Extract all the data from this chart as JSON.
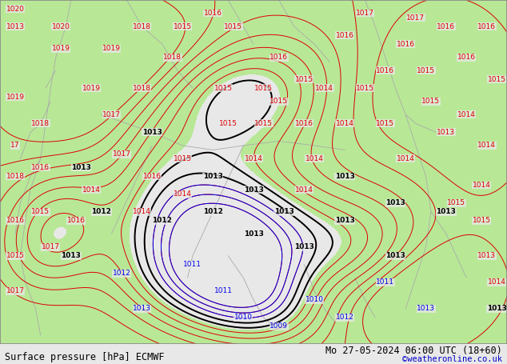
{
  "title_left": "Surface pressure [hPa] ECMWF",
  "title_right": "Mo 27-05-2024 06:00 UTC (18+60)",
  "credit": "©weatheronline.co.uk",
  "bg_color": "#e8e8e8",
  "green_color": "#b8e896",
  "border_color": "#888888",
  "contour_red_color": "#dd0000",
  "contour_black_color": "#000000",
  "contour_blue_color": "#0000ee",
  "gray_coast_color": "#aaaaaa",
  "label_fontsize": 6.5,
  "footer_fontsize": 8.5,
  "credit_fontsize": 7.5,
  "credit_color": "#0000cc",
  "green_threshold": 1013.5,
  "red_levels": [
    1009,
    1010,
    1011,
    1012,
    1013,
    1014,
    1015,
    1016,
    1017,
    1018,
    1019,
    1020
  ],
  "black_levels": [
    1012,
    1013
  ],
  "blue_levels": [
    1009,
    1010,
    1011
  ]
}
